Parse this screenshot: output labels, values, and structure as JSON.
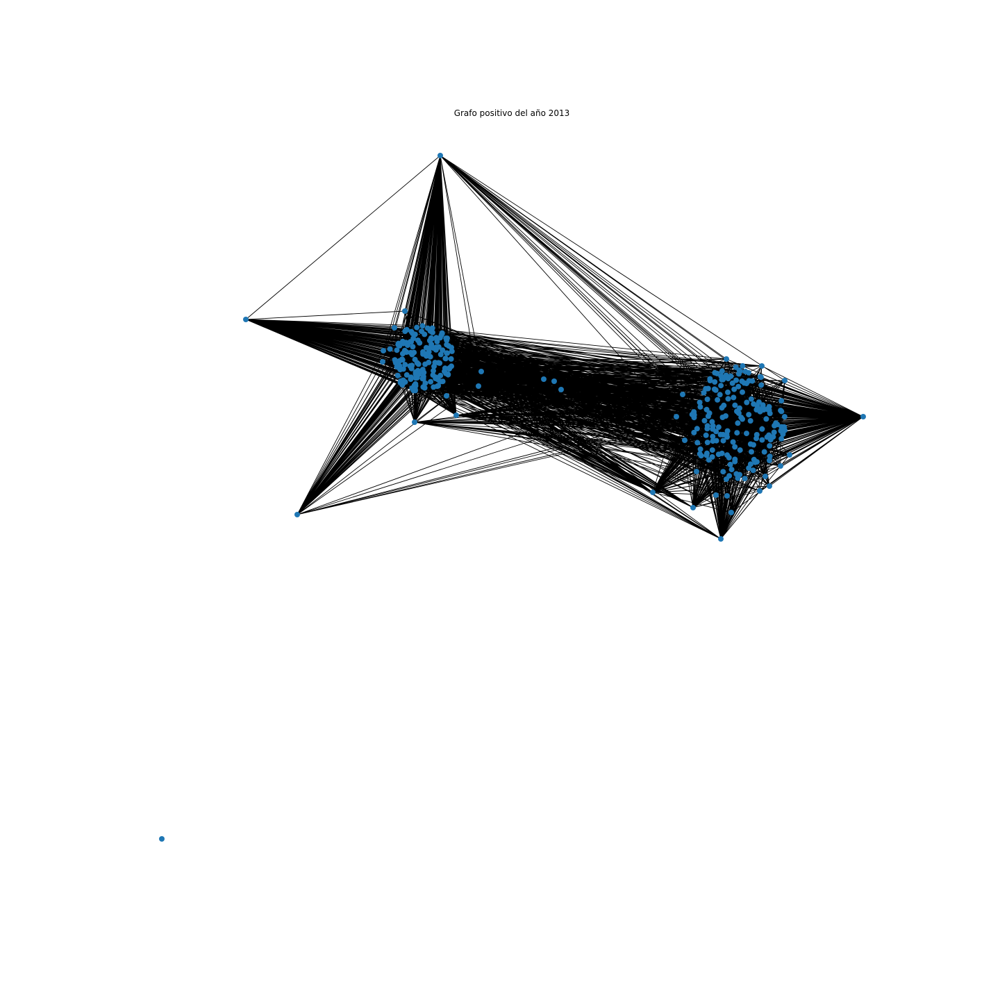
{
  "title": "Grafo positivo del año 2013",
  "node_color": "#1f77b4",
  "edge_color": "#000000",
  "background": "#ffffff"
}
